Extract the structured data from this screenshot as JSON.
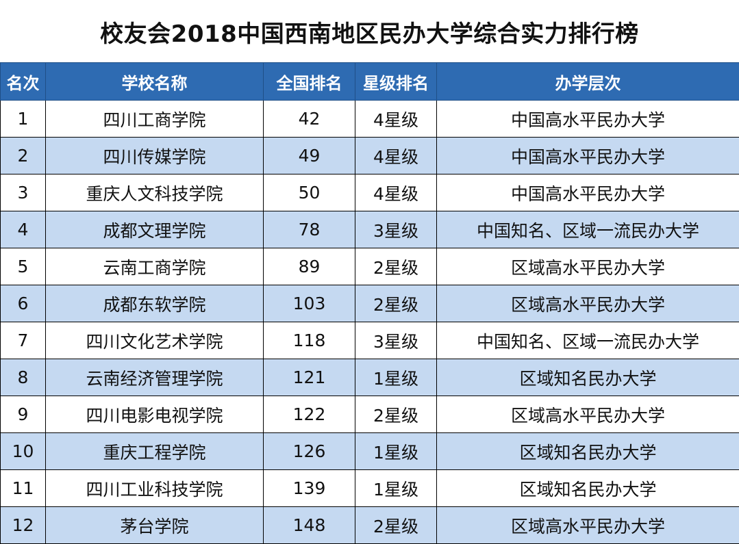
{
  "title": "校友会2018中国西南地区民办大学综合实力排行榜",
  "headers": {
    "rank": "名次",
    "school": "学校名称",
    "national": "全国排名",
    "star": "星级排名",
    "level": "办学层次"
  },
  "rows": [
    {
      "rank": "1",
      "school": "四川工商学院",
      "national": "42",
      "star": "4星级",
      "level": "中国高水平民办大学"
    },
    {
      "rank": "2",
      "school": "四川传媒学院",
      "national": "49",
      "star": "4星级",
      "level": "中国高水平民办大学"
    },
    {
      "rank": "3",
      "school": "重庆人文科技学院",
      "national": "50",
      "star": "4星级",
      "level": "中国高水平民办大学"
    },
    {
      "rank": "4",
      "school": "成都文理学院",
      "national": "78",
      "star": "3星级",
      "level": "中国知名、区域一流民办大学"
    },
    {
      "rank": "5",
      "school": "云南工商学院",
      "national": "89",
      "star": "2星级",
      "level": "区域高水平民办大学"
    },
    {
      "rank": "6",
      "school": "成都东软学院",
      "national": "103",
      "star": "2星级",
      "level": "区域高水平民办大学"
    },
    {
      "rank": "7",
      "school": "四川文化艺术学院",
      "national": "118",
      "star": "3星级",
      "level": "中国知名、区域一流民办大学"
    },
    {
      "rank": "8",
      "school": "云南经济管理学院",
      "national": "121",
      "star": "1星级",
      "level": "区域知名民办大学"
    },
    {
      "rank": "9",
      "school": "四川电影电视学院",
      "national": "122",
      "star": "2星级",
      "level": "区域高水平民办大学"
    },
    {
      "rank": "10",
      "school": "重庆工程学院",
      "national": "126",
      "star": "1星级",
      "level": "区域知名民办大学"
    },
    {
      "rank": "11",
      "school": "四川工业科技学院",
      "national": "139",
      "star": "1星级",
      "level": "区域知名民办大学"
    },
    {
      "rank": "12",
      "school": "茅台学院",
      "national": "148",
      "star": "2星级",
      "level": "区域高水平民办大学"
    }
  ],
  "colors": {
    "header_bg": "#2e6bb2",
    "header_text": "#ffffff",
    "stripe_bg": "#c5d9f1"
  }
}
